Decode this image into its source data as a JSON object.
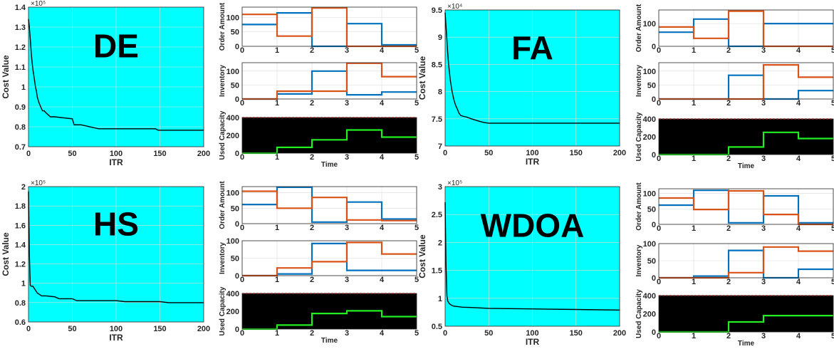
{
  "colors": {
    "cost_bg": "#00ffff",
    "cost_line": "#000000",
    "capacity_bg": "#000000",
    "series_blue": "#0072bd",
    "series_orange": "#d95319",
    "series_green": "#22ee22",
    "limit_red": "#ff2a2a",
    "grid": "#dadada"
  },
  "chart_data": [
    {
      "type": "line",
      "title": "DE",
      "xlabel": "ITR",
      "ylabel": "Cost Value",
      "exponent_label": "×10⁵",
      "xlim": [
        0,
        200
      ],
      "ylim": [
        0.7,
        1.4
      ],
      "xticks": [
        0,
        50,
        100,
        150,
        200
      ],
      "yticks": [
        0.7,
        0.8,
        0.9,
        1,
        1.1,
        1.2,
        1.3,
        1.4
      ],
      "grid": true,
      "series": [
        {
          "x": [
            0,
            1,
            2,
            3,
            4,
            5,
            6,
            7,
            8,
            9,
            10,
            12,
            14,
            16,
            18,
            20,
            25,
            30,
            40,
            50,
            52,
            60,
            80,
            100,
            120,
            145,
            148,
            200
          ],
          "y": [
            1.34,
            1.3,
            1.24,
            1.18,
            1.13,
            1.09,
            1.06,
            1.03,
            1.0,
            0.98,
            0.95,
            0.92,
            0.9,
            0.88,
            0.88,
            0.87,
            0.85,
            0.85,
            0.845,
            0.84,
            0.81,
            0.81,
            0.79,
            0.79,
            0.79,
            0.79,
            0.783,
            0.783
          ]
        }
      ],
      "subplots": {
        "order_amount": {
          "ylabel": "Order Amount",
          "ylim": [
            0,
            135
          ],
          "yticks": [
            0,
            50,
            100
          ],
          "xticks": [
            0,
            1,
            2,
            3,
            4,
            5
          ],
          "series": [
            {
              "values": [
                75,
                115,
                0,
                78,
                5
              ]
            },
            {
              "values": [
                110,
                35,
                132,
                0,
                0
              ]
            }
          ]
        },
        "inventory": {
          "ylabel": "Inventory",
          "ylim": [
            0,
            130
          ],
          "yticks": [
            0,
            50,
            100
          ],
          "xticks": [
            0,
            1,
            2,
            3,
            4,
            5
          ],
          "series": [
            {
              "values": [
                0,
                18,
                100,
                15,
                25
              ]
            },
            {
              "values": [
                0,
                28,
                28,
                128,
                80
              ]
            }
          ]
        },
        "used_capacity": {
          "ylabel": "Used Capacity",
          "xlabel": "Time",
          "ylim": [
            0,
            400
          ],
          "yticks": [
            0,
            200,
            400
          ],
          "xticks": [
            0,
            1,
            2,
            3,
            4,
            5
          ],
          "limit": 400,
          "series": [
            {
              "values": [
                0,
                65,
                150,
                260,
                180
              ]
            }
          ]
        }
      }
    },
    {
      "type": "line",
      "title": "FA",
      "xlabel": "ITR",
      "ylabel": "Cost Value",
      "exponent_label": "×10⁴",
      "xlim": [
        0,
        200
      ],
      "ylim": [
        7,
        9.5
      ],
      "xticks": [
        0,
        50,
        100,
        150,
        200
      ],
      "yticks": [
        7,
        7.5,
        8,
        8.5,
        9,
        9.5
      ],
      "grid": true,
      "series": [
        {
          "x": [
            0,
            1,
            2,
            3,
            4,
            5,
            6,
            8,
            10,
            12,
            14,
            16,
            18,
            20,
            25,
            30,
            40,
            45,
            50,
            200
          ],
          "y": [
            9.45,
            9.2,
            8.95,
            8.7,
            8.5,
            8.35,
            8.2,
            8.0,
            7.85,
            7.75,
            7.68,
            7.6,
            7.56,
            7.55,
            7.53,
            7.5,
            7.45,
            7.43,
            7.42,
            7.42
          ]
        }
      ],
      "subplots": {
        "order_amount": {
          "ylabel": "Order Amount",
          "ylim": [
            0,
            160
          ],
          "yticks": [
            0,
            100
          ],
          "xticks": [
            0,
            1,
            2,
            3,
            4,
            5
          ],
          "series": [
            {
              "values": [
                62,
                120,
                0,
                100,
                100
              ]
            },
            {
              "values": [
                85,
                35,
                155,
                0,
                0
              ]
            }
          ]
        },
        "inventory": {
          "ylabel": "Inventory",
          "ylim": [
            0,
            130
          ],
          "yticks": [
            0,
            50,
            100
          ],
          "xticks": [
            0,
            1,
            2,
            3,
            4,
            5
          ],
          "series": [
            {
              "values": [
                0,
                0,
                85,
                0,
                30
              ]
            },
            {
              "values": [
                0,
                0,
                0,
                122,
                78
              ]
            }
          ]
        },
        "used_capacity": {
          "ylabel": "Used Capacity",
          "xlabel": "Time",
          "ylim": [
            0,
            400
          ],
          "yticks": [
            0,
            200,
            400
          ],
          "xticks": [
            0,
            1,
            2,
            3,
            4,
            5
          ],
          "limit": 400,
          "series": [
            {
              "values": [
                0,
                0,
                85,
                250,
                180
              ]
            }
          ]
        }
      }
    },
    {
      "type": "line",
      "title": "HS",
      "xlabel": "ITR",
      "ylabel": "Cost Value",
      "exponent_label": "×10⁵",
      "xlim": [
        0,
        200
      ],
      "ylim": [
        0.6,
        2
      ],
      "xticks": [
        0,
        50,
        100,
        150,
        200
      ],
      "yticks": [
        0.6,
        0.8,
        1,
        1.2,
        1.4,
        1.6,
        1.8,
        2
      ],
      "grid": true,
      "series": [
        {
          "x": [
            0,
            1,
            2,
            3,
            4,
            5,
            10,
            15,
            20,
            30,
            35,
            50,
            55,
            100,
            110,
            150,
            160,
            200
          ],
          "y": [
            1.95,
            1.3,
            0.98,
            0.97,
            0.97,
            0.97,
            0.9,
            0.87,
            0.87,
            0.86,
            0.84,
            0.84,
            0.82,
            0.82,
            0.81,
            0.81,
            0.8,
            0.8
          ]
        }
      ],
      "subplots": {
        "order_amount": {
          "ylabel": "Order Amount",
          "ylim": [
            0,
            120
          ],
          "yticks": [
            0,
            50,
            100
          ],
          "xticks": [
            0,
            1,
            2,
            3,
            4,
            5
          ],
          "series": [
            {
              "values": [
                62,
                118,
                5,
                70,
                15
              ]
            },
            {
              "values": [
                105,
                50,
                85,
                12,
                10
              ]
            }
          ]
        },
        "inventory": {
          "ylabel": "Inventory",
          "ylim": [
            0,
            100
          ],
          "yticks": [
            0,
            50,
            100
          ],
          "xticks": [
            0,
            1,
            2,
            3,
            4,
            5
          ],
          "series": [
            {
              "values": [
                0,
                5,
                92,
                15,
                15
              ]
            },
            {
              "values": [
                0,
                22,
                40,
                95,
                62
              ]
            }
          ]
        },
        "used_capacity": {
          "ylabel": "Used Capacity",
          "xlabel": "Time",
          "ylim": [
            0,
            400
          ],
          "yticks": [
            0,
            200,
            400
          ],
          "xticks": [
            0,
            1,
            2,
            3,
            4,
            5
          ],
          "limit": 400,
          "series": [
            {
              "values": [
                0,
                45,
                175,
                205,
                140
              ]
            }
          ]
        }
      }
    },
    {
      "type": "line",
      "title": "WDOA",
      "xlabel": "ITR",
      "ylabel": "Cost Value",
      "exponent_label": "×10⁵",
      "xlim": [
        0,
        200
      ],
      "ylim": [
        0.5,
        3
      ],
      "xticks": [
        0,
        50,
        100,
        150,
        200
      ],
      "yticks": [
        0.5,
        1,
        1.5,
        2,
        2.5,
        3
      ],
      "grid": true,
      "series": [
        {
          "x": [
            0,
            1,
            2,
            3,
            5,
            8,
            10,
            15,
            20,
            30,
            50,
            100,
            150,
            200
          ],
          "y": [
            2.72,
            1.6,
            1.05,
            0.95,
            0.9,
            0.87,
            0.86,
            0.85,
            0.84,
            0.835,
            0.82,
            0.81,
            0.8,
            0.79
          ]
        }
      ],
      "subplots": {
        "order_amount": {
          "ylabel": "Order Amount",
          "ylim": [
            0,
            115
          ],
          "yticks": [
            0,
            50,
            100
          ],
          "xticks": [
            0,
            1,
            2,
            3,
            4,
            5
          ],
          "series": [
            {
              "values": [
                62,
                110,
                5,
                92,
                5
              ]
            },
            {
              "values": [
                85,
                48,
                108,
                32,
                0
              ]
            }
          ]
        },
        "inventory": {
          "ylabel": "Inventory",
          "ylim": [
            0,
            100
          ],
          "yticks": [
            0,
            50,
            100
          ],
          "xticks": [
            0,
            1,
            2,
            3,
            4,
            5
          ],
          "series": [
            {
              "values": [
                0,
                5,
                80,
                0,
                25
              ]
            },
            {
              "values": [
                0,
                0,
                15,
                90,
                78
              ]
            }
          ]
        },
        "used_capacity": {
          "ylabel": "Used Capacity",
          "xlabel": "Time",
          "ylim": [
            0,
            400
          ],
          "yticks": [
            0,
            200,
            400
          ],
          "xticks": [
            0,
            1,
            2,
            3,
            4,
            5
          ],
          "limit": 400,
          "series": [
            {
              "values": [
                0,
                0,
                110,
                180,
                180
              ]
            }
          ]
        }
      }
    }
  ]
}
